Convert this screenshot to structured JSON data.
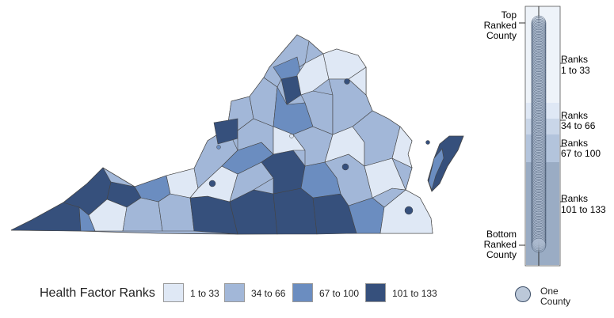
{
  "colors": {
    "rank_1_33": "#dfe8f5",
    "rank_34_66": "#a2b7d8",
    "rank_67_100": "#6b8dc0",
    "rank_101_133": "#36507c",
    "border": "#444444",
    "panel_bg": "#c7d4e4",
    "marker": "#afbed2"
  },
  "ranker": {
    "top_label": [
      "Top",
      "Ranked",
      "County"
    ],
    "bottom_label": [
      "Bottom",
      "Ranked",
      "County"
    ],
    "groups": [
      {
        "line1": "Ranks",
        "line2": "1 to 33"
      },
      {
        "line1": "Ranks",
        "line2": "34 to 66"
      },
      {
        "line1": "Ranks",
        "line2": "67 to 100"
      },
      {
        "line1": "Ranks",
        "line2": "101 to 133"
      }
    ]
  },
  "legend": {
    "title": "Health Factor Ranks",
    "items": [
      "1 to 33",
      "34 to 66",
      "67 to 100",
      "101 to 133"
    ],
    "marker_label": "One County"
  }
}
